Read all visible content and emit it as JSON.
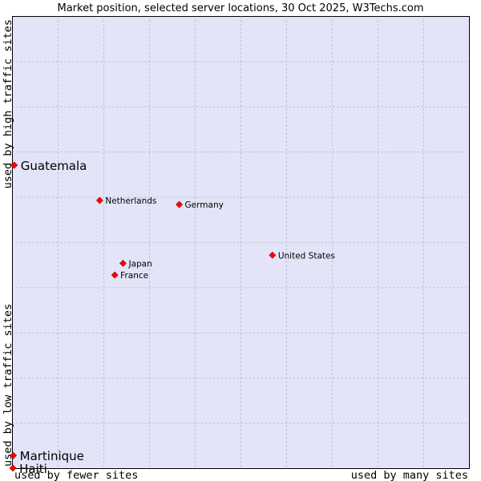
{
  "chart_data": {
    "type": "scatter",
    "title": "Market position, selected server locations, 30 Oct 2025, W3Techs.com",
    "xlabel_left": "used by fewer sites",
    "xlabel_right": "used by many sites",
    "ylabel_bottom": "used by low traffic sites",
    "ylabel_top": "used by high traffic sites",
    "xlim": [
      0,
      100
    ],
    "ylim": [
      0,
      100
    ],
    "grid": true,
    "background_color": "#e4e4f8",
    "marker_color": "#ff0000",
    "points": [
      {
        "label": "Guatemala",
        "x": 0.4,
        "y": 67.1,
        "highlight": true
      },
      {
        "label": "Martinique",
        "x": 0.2,
        "y": 2.9,
        "highlight": true
      },
      {
        "label": "Haiti",
        "x": 0.1,
        "y": 0.1,
        "highlight": true
      },
      {
        "label": "Netherlands",
        "x": 19.1,
        "y": 59.3,
        "highlight": false
      },
      {
        "label": "Germany",
        "x": 36.5,
        "y": 58.4,
        "highlight": false
      },
      {
        "label": "United States",
        "x": 56.9,
        "y": 47.2,
        "highlight": false
      },
      {
        "label": "Japan",
        "x": 24.2,
        "y": 45.4,
        "highlight": false
      },
      {
        "label": "France",
        "x": 22.4,
        "y": 42.8,
        "highlight": false
      }
    ]
  }
}
